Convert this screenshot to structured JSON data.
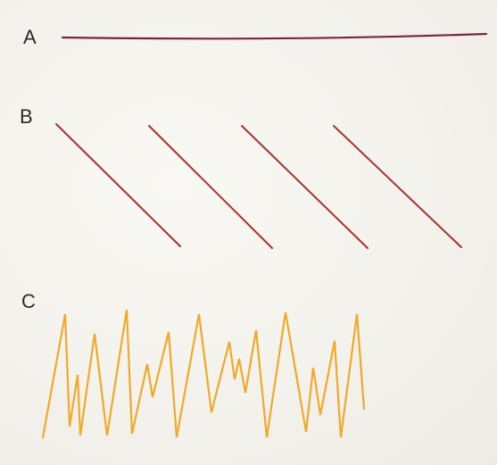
{
  "labels": {
    "a": "A",
    "b": "B",
    "c": "C"
  },
  "colors": {
    "line_a": "#7a2348",
    "line_b": "#a5332d",
    "line_c": "#f0a92a"
  }
}
